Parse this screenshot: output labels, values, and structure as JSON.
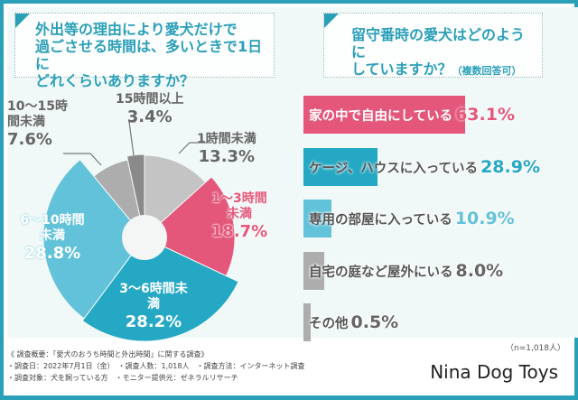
{
  "colors": {
    "border": "#2a9fb8",
    "pink": "#e4577a",
    "teal": "#24a8c4",
    "lightblue": "#62c2d9",
    "gray": "#adadad",
    "lightgray": "#c4c4c4",
    "darkgray": "#8a8a8a"
  },
  "left_question": [
    "外出等の理由により愛犬だけで",
    "過ごさせる時間は、多いときで1日に",
    "どれくらいありますか？"
  ],
  "right_question": {
    "line1": "留守番時の愛犬はどのように",
    "line2": "していますか？",
    "note": "（複数回答可）"
  },
  "chart_data": [
    {
      "type": "pie",
      "unit": "%",
      "order": "clockwise from top",
      "slices": [
        {
          "label": "1時間未満",
          "value": 13.3,
          "pct": "13.3%",
          "color": "#c4c4c4"
        },
        {
          "label": "1〜3時間未満",
          "value": 18.7,
          "pct": "18.7%",
          "color": "#e4577a"
        },
        {
          "label": "3〜6時間未満",
          "value": 28.2,
          "pct": "28.2%",
          "color": "#24a8c4"
        },
        {
          "label": "6〜10時間未満",
          "value": 28.8,
          "pct": "28.8%",
          "color": "#62c2d9"
        },
        {
          "label": "10〜15時間未満",
          "value": 7.6,
          "pct": "7.6%",
          "color": "#adadad"
        },
        {
          "label": "15時間以上",
          "value": 3.4,
          "pct": "3.4%",
          "color": "#8a8a8a"
        }
      ]
    },
    {
      "type": "bar",
      "orientation": "horizontal",
      "unit": "%",
      "categories": [
        "家の中で自由にしている",
        "ケージ、ハウスに入っている",
        "専用の部屋に入っている",
        "自宅の庭など屋外にいる",
        "その他"
      ],
      "values": [
        63.1,
        28.9,
        10.9,
        8.0,
        0.5
      ],
      "pct_labels": [
        "63.1%",
        "28.9%",
        "10.9%",
        "8.0%",
        "0.5%"
      ],
      "colors": [
        "#e4577a",
        "#24a8c4",
        "#62c2d9",
        "#adadad",
        "#adadad"
      ]
    }
  ],
  "sample": "（n=1,018人）",
  "footer": [
    "《 調査概要：「愛犬のおうち時間と外出時間」に関する調査》",
    "・調査日：2022年7月1日（金）　・調査人数：1,018人　・調査方法：インターネット調査",
    "・調査対象：犬を飼っている方　・モニター提供元：ゼネラルリサーチ"
  ],
  "brand": "Nina Dog Toys"
}
